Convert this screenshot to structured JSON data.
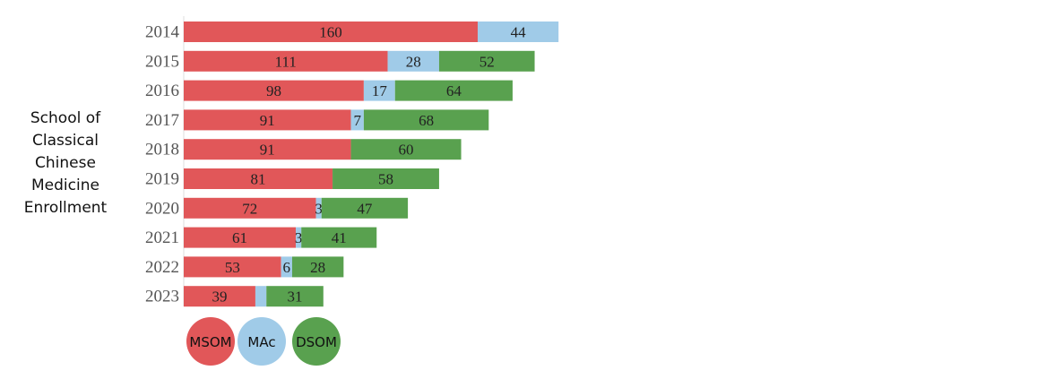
{
  "chart_data": {
    "type": "bar",
    "orientation": "horizontal",
    "stacked": true,
    "title": "School of Classical Chinese Medicine Enrollment",
    "categories": [
      "2014",
      "2015",
      "2016",
      "2017",
      "2018",
      "2019",
      "2020",
      "2021",
      "2022",
      "2023"
    ],
    "series": [
      {
        "name": "MSOM",
        "color": "#e15759",
        "values": [
          160,
          111,
          98,
          91,
          91,
          81,
          72,
          61,
          53,
          39
        ]
      },
      {
        "name": "MAc",
        "color": "#a0cbe8",
        "values": [
          44,
          28,
          17,
          7,
          0,
          0,
          3,
          3,
          6,
          6
        ]
      },
      {
        "name": "DSOM",
        "color": "#59a14f",
        "values": [
          0,
          52,
          64,
          68,
          60,
          58,
          47,
          41,
          28,
          31
        ]
      }
    ],
    "value_labels": {
      "MSOM": [
        "160",
        "111",
        "98",
        "91",
        "91",
        "81",
        "72",
        "61",
        "53",
        "39"
      ],
      "MAc": [
        "44",
        "28",
        "17",
        "7",
        "",
        "",
        "3",
        "3",
        "6",
        ""
      ],
      "DSOM": [
        "",
        "52",
        "64",
        "68",
        "60",
        "58",
        "47",
        "41",
        "28",
        "31"
      ]
    },
    "legend_placement": "bottom-left",
    "grid": false
  }
}
